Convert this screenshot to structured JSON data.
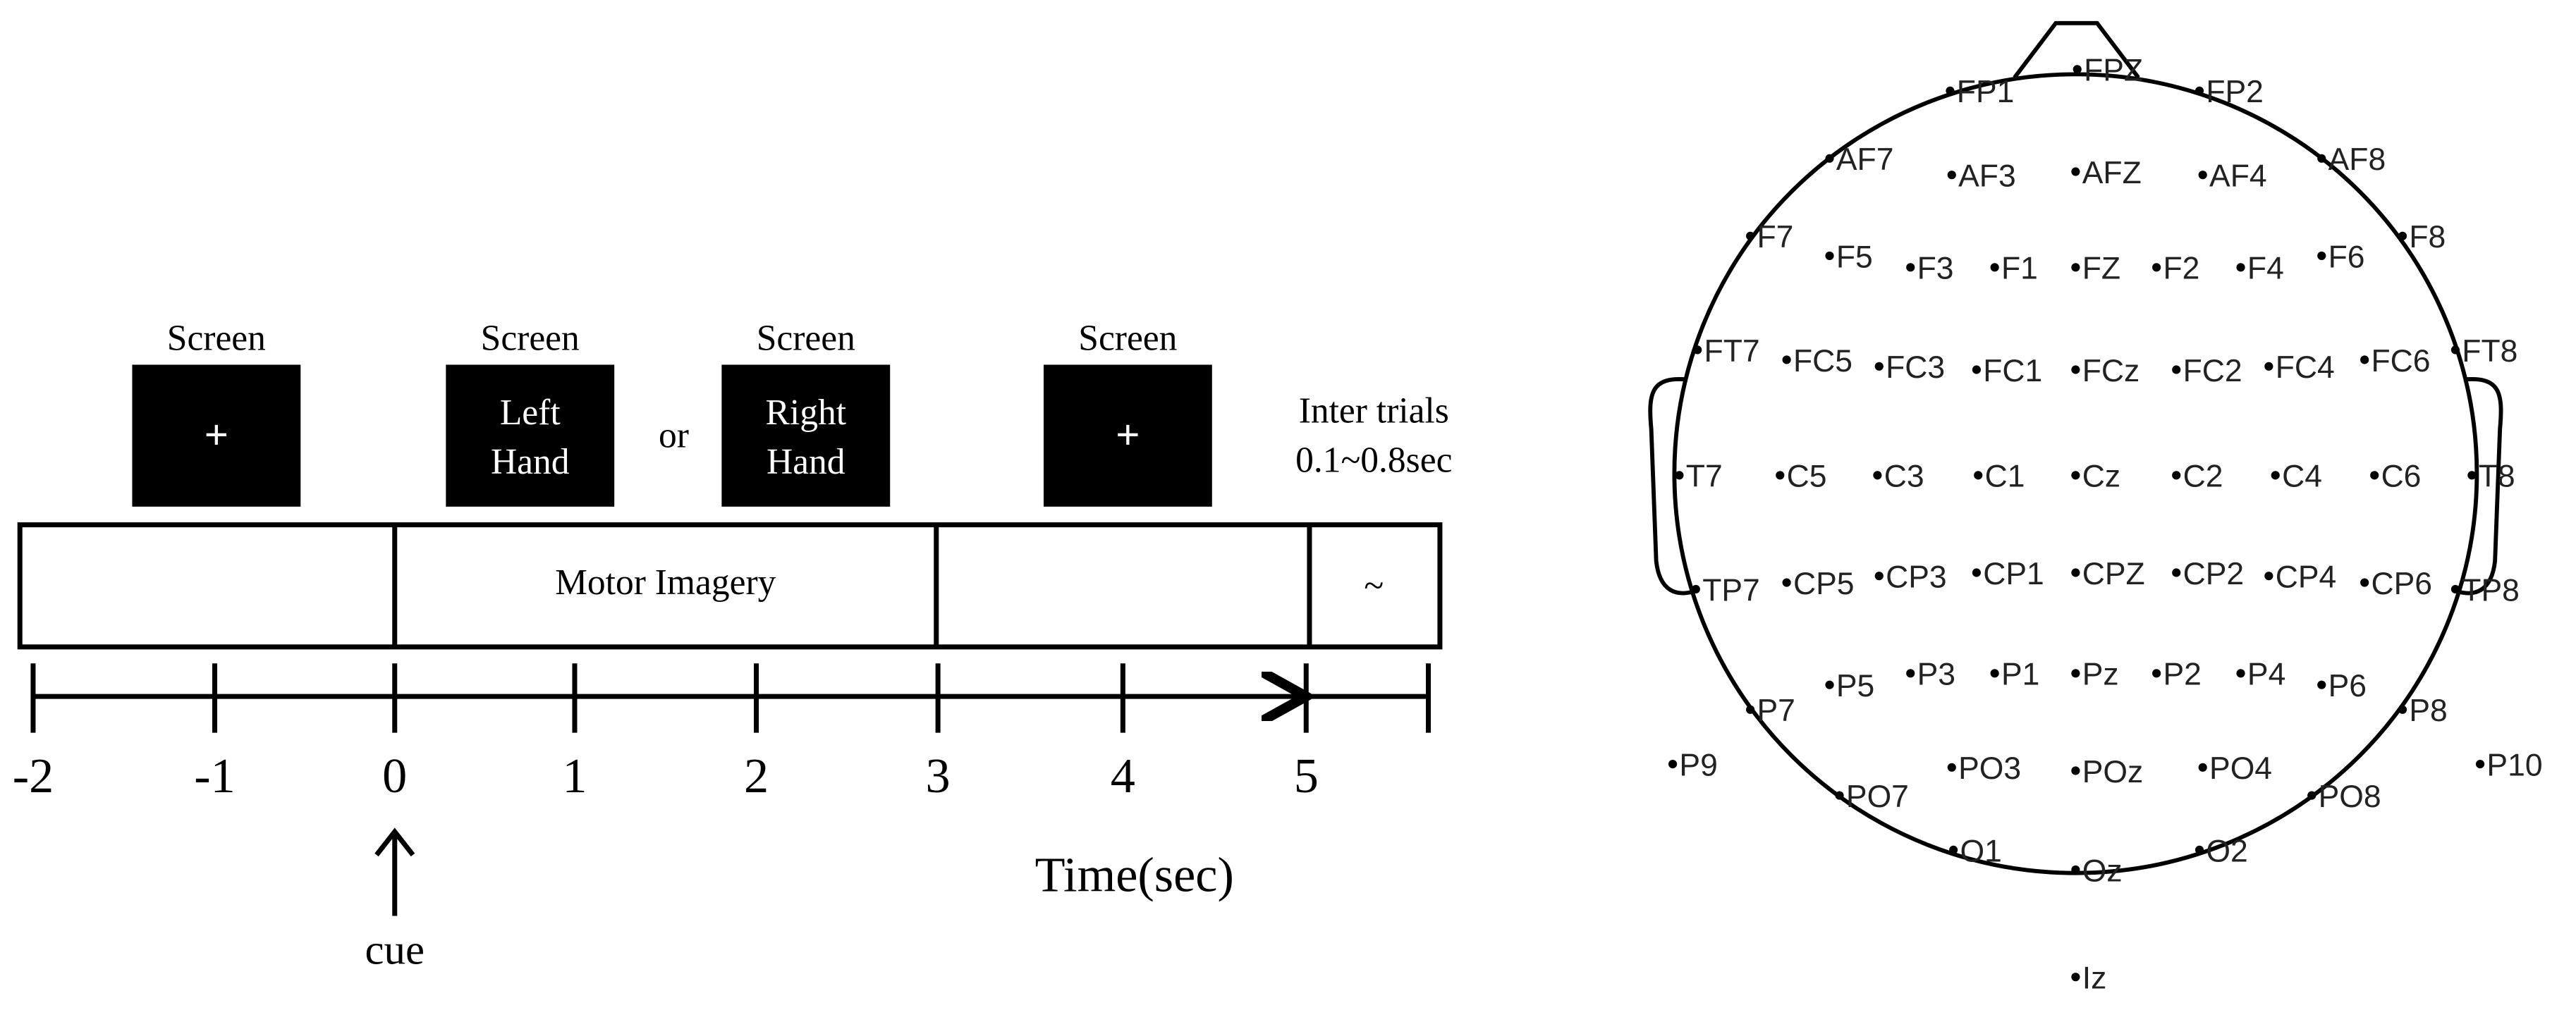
{
  "timeline": {
    "screens": [
      {
        "title": "Screen",
        "lines": [
          "+"
        ]
      },
      {
        "title": "Screen",
        "lines": [
          "Left",
          "Hand"
        ]
      },
      {
        "title": "Screen",
        "lines": [
          "Right",
          "Hand"
        ]
      },
      {
        "title": "Screen",
        "lines": [
          "+"
        ]
      }
    ],
    "or": "or",
    "inter_trials": [
      "Inter trials",
      "0.1~0.8sec"
    ],
    "segments": [
      "Motor Imagery",
      "~"
    ],
    "ticks": [
      "-2",
      "-1",
      "0",
      "1",
      "2",
      "3",
      "4",
      "5"
    ],
    "axis_label": "Time(sec)",
    "cue": "cue"
  },
  "electrodes": [
    "FP1",
    "FPZ",
    "FP2",
    "AF7",
    "AF3",
    "AFZ",
    "AF4",
    "AF8",
    "F7",
    "F5",
    "F3",
    "F1",
    "FZ",
    "F2",
    "F4",
    "F6",
    "F8",
    "FT7",
    "FC5",
    "FC3",
    "FC1",
    "FCz",
    "FC2",
    "FC4",
    "FC6",
    "FT8",
    "T7",
    "C5",
    "C3",
    "C1",
    "Cz",
    "C2",
    "C4",
    "C6",
    "T8",
    "TP7",
    "CP5",
    "CP3",
    "CP1",
    "CPZ",
    "CP2",
    "CP4",
    "CP6",
    "TP8",
    "P7",
    "P5",
    "P3",
    "P1",
    "Pz",
    "P2",
    "P4",
    "P6",
    "P8",
    "P9",
    "P10",
    "PO7",
    "PO3",
    "POz",
    "PO4",
    "PO8",
    "O1",
    "Oz",
    "O2",
    "Iz"
  ]
}
